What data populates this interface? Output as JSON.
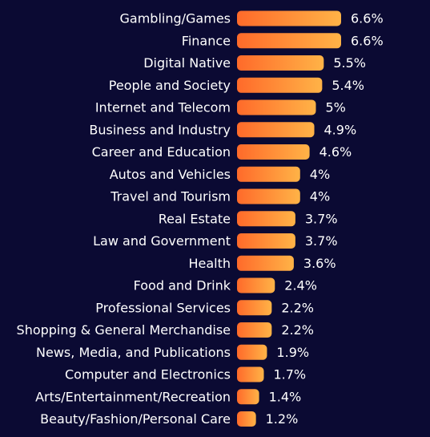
{
  "chart_data": {
    "type": "bar",
    "orientation": "horizontal",
    "categories": [
      "Gambling/Games",
      "Finance",
      "Digital Native",
      "People and Society",
      "Internet and Telecom",
      "Business and Industry",
      "Career and Education",
      "Autos and Vehicles",
      "Travel and Tourism",
      "Real Estate",
      "Law and Government",
      "Health",
      "Food and Drink",
      "Professional Services",
      "Shopping & General Merchandise",
      "News, Media, and Publications",
      "Computer and Electronics",
      "Arts/Entertainment/Recreation",
      "Beauty/Fashion/Personal Care"
    ],
    "values": [
      6.6,
      6.6,
      5.5,
      5.4,
      5.0,
      4.9,
      4.6,
      4.0,
      4.0,
      3.7,
      3.7,
      3.6,
      2.4,
      2.2,
      2.2,
      1.9,
      1.7,
      1.4,
      1.2
    ],
    "value_labels": [
      "6.6%",
      "6.6%",
      "5.5%",
      "5.4%",
      "5%",
      "4.9%",
      "4.6%",
      "4%",
      "4%",
      "3.7%",
      "3.7%",
      "3.6%",
      "2.4%",
      "2.2%",
      "2.2%",
      "1.9%",
      "1.7%",
      "1.4%",
      "1.2%"
    ],
    "title": "",
    "xlabel": "",
    "ylabel": "",
    "xlim": [
      0,
      6.6
    ],
    "grid": false,
    "legend": "none",
    "colors": {
      "background": "#0b0a33",
      "bar_start": "#ff6a2a",
      "bar_end": "#ffb347",
      "text": "#ffffff"
    }
  }
}
